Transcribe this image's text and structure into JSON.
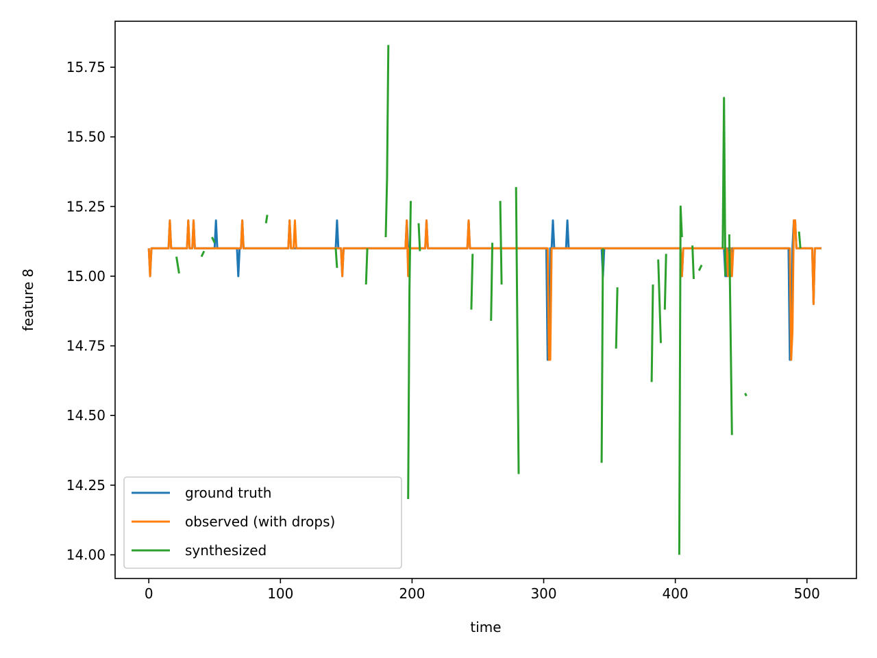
{
  "chart_data": {
    "type": "line",
    "title": "",
    "xlabel": "time",
    "ylabel": "feature 8",
    "xlim": [
      -25.6,
      537.6
    ],
    "ylim": [
      13.915,
      15.915
    ],
    "xticks": [
      0,
      100,
      200,
      300,
      400,
      500
    ],
    "xtick_labels": [
      "0",
      "100",
      "200",
      "300",
      "400",
      "500"
    ],
    "yticks": [
      14.0,
      14.25,
      14.5,
      14.75,
      15.0,
      15.25,
      15.5,
      15.75
    ],
    "ytick_labels": [
      "14.00",
      "14.25",
      "14.50",
      "14.75",
      "15.00",
      "15.25",
      "15.50",
      "15.75"
    ],
    "grid": false,
    "legend_position": "lower-left",
    "series": [
      {
        "name": "ground truth",
        "color": "#1f77b4",
        "points": [
          [
            0,
            15.1
          ],
          [
            1,
            15.0
          ],
          [
            2,
            15.1
          ],
          [
            15,
            15.1
          ],
          [
            16,
            15.2
          ],
          [
            17,
            15.1
          ],
          [
            29,
            15.1
          ],
          [
            30,
            15.2
          ],
          [
            31,
            15.1
          ],
          [
            33,
            15.1
          ],
          [
            34,
            15.2
          ],
          [
            35,
            15.1
          ],
          [
            50,
            15.1
          ],
          [
            51,
            15.2
          ],
          [
            52,
            15.1
          ],
          [
            67,
            15.1
          ],
          [
            68,
            15.0
          ],
          [
            69,
            15.1
          ],
          [
            70,
            15.1
          ],
          [
            71,
            15.2
          ],
          [
            72,
            15.1
          ],
          [
            106,
            15.1
          ],
          [
            107,
            15.2
          ],
          [
            108,
            15.1
          ],
          [
            142,
            15.1
          ],
          [
            143,
            15.2
          ],
          [
            144,
            15.1
          ],
          [
            146,
            15.1
          ],
          [
            147,
            15.0
          ],
          [
            148,
            15.1
          ],
          [
            195,
            15.1
          ],
          [
            196,
            15.2
          ],
          [
            197,
            15.1
          ],
          [
            210,
            15.1
          ],
          [
            211,
            15.2
          ],
          [
            212,
            15.1
          ],
          [
            242,
            15.1
          ],
          [
            243,
            15.2
          ],
          [
            244,
            15.1
          ],
          [
            302,
            15.1
          ],
          [
            303,
            14.7
          ],
          [
            304,
            14.7
          ],
          [
            305,
            15.1
          ],
          [
            306,
            15.1
          ],
          [
            307,
            15.2
          ],
          [
            308,
            15.1
          ],
          [
            317,
            15.1
          ],
          [
            318,
            15.2
          ],
          [
            319,
            15.1
          ],
          [
            344,
            15.1
          ],
          [
            345,
            15.0
          ],
          [
            346,
            15.1
          ],
          [
            404,
            15.1
          ],
          [
            405,
            15.0
          ],
          [
            406,
            15.1
          ],
          [
            437,
            15.1
          ],
          [
            438,
            15.0
          ],
          [
            439,
            15.0
          ],
          [
            440,
            15.1
          ],
          [
            441,
            15.1
          ],
          [
            442,
            15.0
          ],
          [
            443,
            15.1
          ],
          [
            486,
            15.1
          ],
          [
            487,
            14.7
          ],
          [
            488,
            14.7
          ],
          [
            489,
            15.1
          ],
          [
            490,
            15.2
          ],
          [
            491,
            15.2
          ],
          [
            492,
            15.1
          ],
          [
            504,
            15.1
          ],
          [
            505,
            14.9
          ],
          [
            506,
            15.1
          ],
          [
            511,
            15.1
          ]
        ]
      },
      {
        "name": "observed (with drops)",
        "color": "#ff7f0e",
        "points": [
          [
            0,
            15.1
          ],
          [
            1,
            15.0
          ],
          [
            2,
            15.1
          ],
          [
            15,
            15.1
          ],
          [
            16,
            15.2
          ],
          [
            17,
            15.1
          ],
          [
            29,
            15.1
          ],
          [
            30,
            15.2
          ],
          [
            31,
            15.1
          ],
          [
            33,
            15.1
          ],
          [
            34,
            15.2
          ],
          [
            35,
            15.1
          ],
          [
            70,
            15.1
          ],
          [
            71,
            15.2
          ],
          [
            72,
            15.1
          ],
          [
            106,
            15.1
          ],
          [
            107,
            15.2
          ],
          [
            108,
            15.1
          ],
          [
            110,
            15.1
          ],
          [
            111,
            15.2
          ],
          [
            112,
            15.1
          ],
          [
            146,
            15.1
          ],
          [
            147,
            15.0
          ],
          [
            148,
            15.1
          ],
          [
            195,
            15.1
          ],
          [
            196,
            15.2
          ],
          [
            197,
            15.0
          ],
          [
            198,
            15.1
          ],
          [
            210,
            15.1
          ],
          [
            211,
            15.2
          ],
          [
            212,
            15.1
          ],
          [
            242,
            15.1
          ],
          [
            243,
            15.2
          ],
          [
            244,
            15.1
          ],
          [
            303,
            15.1
          ],
          [
            304,
            14.7
          ],
          [
            305,
            14.7
          ],
          [
            306,
            15.1
          ],
          [
            404,
            15.1
          ],
          [
            405,
            15.0
          ],
          [
            406,
            15.1
          ],
          [
            439,
            15.1
          ],
          [
            440,
            15.0
          ],
          [
            441,
            15.1
          ],
          [
            442,
            15.1
          ],
          [
            443,
            15.0
          ],
          [
            444,
            15.1
          ],
          [
            487,
            15.1
          ],
          [
            488,
            14.7
          ],
          [
            489,
            14.8
          ],
          [
            490,
            15.2
          ],
          [
            491,
            15.2
          ],
          [
            492,
            15.1
          ],
          [
            504,
            15.1
          ],
          [
            505,
            14.9
          ],
          [
            506,
            15.1
          ],
          [
            511,
            15.1
          ]
        ]
      },
      {
        "name": "synthesized",
        "color": "#2ca02c",
        "segments": [
          [
            [
              21,
              15.07
            ],
            [
              23,
              15.01
            ]
          ],
          [
            [
              40,
              15.07
            ],
            [
              42,
              15.09
            ]
          ],
          [
            [
              48,
              15.14
            ],
            [
              50,
              15.12
            ]
          ],
          [
            [
              89,
              15.19
            ],
            [
              90,
              15.22
            ]
          ],
          [
            [
              142,
              15.1
            ],
            [
              143,
              15.03
            ]
          ],
          [
            [
              165,
              14.97
            ],
            [
              166,
              15.1
            ]
          ],
          [
            [
              180,
              15.14
            ],
            [
              181,
              15.35
            ],
            [
              182,
              15.83
            ]
          ],
          [
            [
              197,
              14.2
            ],
            [
              198,
              14.95
            ],
            [
              199,
              15.27
            ]
          ],
          [
            [
              205,
              15.19
            ],
            [
              206,
              15.09
            ]
          ],
          [
            [
              245,
              14.88
            ],
            [
              246,
              15.08
            ]
          ],
          [
            [
              260,
              14.84
            ],
            [
              261,
              15.12
            ]
          ],
          [
            [
              267,
              15.27
            ],
            [
              268,
              14.97
            ]
          ],
          [
            [
              279,
              15.32
            ],
            [
              281,
              14.29
            ]
          ],
          [
            [
              344,
              14.33
            ],
            [
              345,
              15.1
            ]
          ],
          [
            [
              355,
              14.74
            ],
            [
              356,
              14.96
            ]
          ],
          [
            [
              382,
              14.62
            ],
            [
              383,
              14.97
            ]
          ],
          [
            [
              387,
              15.06
            ],
            [
              389,
              14.76
            ]
          ],
          [
            [
              392,
              14.88
            ],
            [
              393,
              15.08
            ]
          ],
          [
            [
              403,
              14.0
            ],
            [
              404,
              15.25
            ],
            [
              405,
              15.14
            ]
          ],
          [
            [
              413,
              15.11
            ],
            [
              414,
              14.99
            ]
          ],
          [
            [
              418,
              15.02
            ],
            [
              420,
              15.04
            ]
          ],
          [
            [
              436,
              15.1
            ],
            [
              437,
              15.64
            ],
            [
              438,
              15.0
            ]
          ],
          [
            [
              441,
              15.15
            ],
            [
              443,
              14.43
            ]
          ],
          [
            [
              453,
              14.58
            ],
            [
              454,
              14.57
            ]
          ],
          [
            [
              494,
              15.16
            ],
            [
              495,
              15.1
            ]
          ]
        ]
      }
    ]
  }
}
